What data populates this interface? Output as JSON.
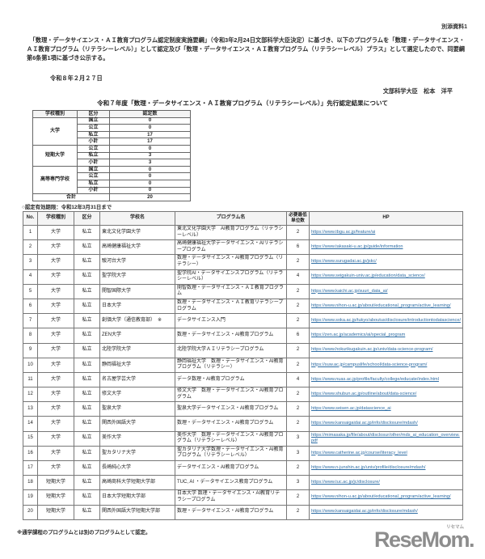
{
  "page": {
    "doc_label": "別添資料1",
    "intro": "　「数理・データサイエンス・ＡＩ教育プログラム認定制度実施要綱」（令和3年2月24日文部科学大臣決定）に基づき、以下のプログラムを「数理・データサイエンス・ＡＩ教育プログラム（リテラシーレベル）」として認定及び「数理・データサイエンス・ＡＩ教育プログラム（リテラシーレベル）プラス」として選定したので、同要綱第6条第1項に基づき公示する。",
    "date": "令和８年２月２７日",
    "signature": "文部科学大臣　松本　洋平",
    "title": "令和７年度「数理・データサイエンス・ＡＩ教育プログラム（リテラシーレベル）」先行認定結果について",
    "validity_note": "○認定有効期限：令和12年3月31日まで",
    "footnote": "※通学課程のプログラムとは別のプログラムとして認定。"
  },
  "summary_table": {
    "headers": [
      "学校種別",
      "区分",
      "認定数"
    ],
    "groups": [
      {
        "type": "大学",
        "rows": [
          [
            "国立",
            "0"
          ],
          [
            "公立",
            "0"
          ],
          [
            "私立",
            "17"
          ],
          [
            "小計",
            "17"
          ]
        ]
      },
      {
        "type": "短期大学",
        "rows": [
          [
            "公立",
            "0"
          ],
          [
            "私立",
            "3"
          ],
          [
            "小計",
            "3"
          ]
        ]
      },
      {
        "type": "高等専門学校",
        "rows": [
          [
            "国立",
            "0"
          ],
          [
            "公立",
            "0"
          ],
          [
            "私立",
            "0"
          ],
          [
            "小計",
            "0"
          ]
        ]
      }
    ],
    "total_label": "合計",
    "total_value": "20"
  },
  "main_table": {
    "headers": [
      "No.",
      "学校種別",
      "区分",
      "学校名",
      "プログラム名",
      "必要最低単位数",
      "HP"
    ],
    "rows": [
      {
        "no": "1",
        "type": "大学",
        "cat": "私立",
        "school": "東北文化学園大学",
        "program": "東北文化学園大学　AI教育プログラム（リテラシーレベル）",
        "units": "2",
        "url": "https://www.tbgu.ac.jp/feature/ai"
      },
      {
        "no": "2",
        "type": "大学",
        "cat": "私立",
        "school": "高崎健康福祉大学",
        "program": "高崎健康福祉大学データサイエンス・AIリテラシープログラム",
        "units": "6",
        "url": "https://www.takasaki-u.ac.jp/guide/information"
      },
      {
        "no": "3",
        "type": "大学",
        "cat": "私立",
        "school": "駿河台大学",
        "program": "数理・データサイエンス・AI教育プログラム（リテラシー）",
        "units": "2",
        "url": "https://www.surugadai.ac.jp/jskc/"
      },
      {
        "no": "4",
        "type": "大学",
        "cat": "私立",
        "school": "聖学院大学",
        "program": "聖学院AI・データサイエンスプログラム（リテラシーレベル）",
        "units": "4",
        "url": "https://www.seigakuin-univ.ac.jp/education/data_science/"
      },
      {
        "no": "5",
        "type": "大学",
        "cat": "私立",
        "school": "開智国際大学",
        "program": "開智数理・データサイエンス・ＡＩ教育プログラム",
        "units": "2",
        "url": "https://www.kaichi.ac.jp/suuri_data_ai/"
      },
      {
        "no": "6",
        "type": "大学",
        "cat": "私立",
        "school": "日本大学",
        "program": "数理・データサイエンス・ＡＩ教育リテラシープログラム",
        "units": "2",
        "url": "https://www.nihon-u.ac.jp/about/educational_program/active_learning/"
      },
      {
        "no": "7",
        "type": "大学",
        "cat": "私立",
        "school": "創価大学（通信教育部）　※",
        "program": "データサイエンス入門",
        "units": "2",
        "url": "https://www.soka.ac.jp/tukyo/aboutus/disclosure/introductiontodatascience/"
      },
      {
        "no": "8",
        "type": "大学",
        "cat": "私立",
        "school": "ZEN大学",
        "program": "数理・データサイエンス・AI教育プログラム",
        "units": "6",
        "url": "https://zen.ac.jp/academics/ai/special_program"
      },
      {
        "no": "9",
        "type": "大学",
        "cat": "私立",
        "school": "北陸学院大学",
        "program": "北陸学院大学ＡＩリテラシープログラム",
        "units": "2",
        "url": "https://www.hokurikugakuin.ac.jp/univ/data-science-program/"
      },
      {
        "no": "10",
        "type": "大学",
        "cat": "私立",
        "school": "静岡福祉大学",
        "program": "静岡福祉大学　数理・データサイエンス・AI教育プログラム（リテラシー）",
        "units": "2",
        "url": "https://suw.ac.jp/campuslife/school/data-science-program/"
      },
      {
        "no": "11",
        "type": "大学",
        "cat": "私立",
        "school": "名古屋学芸大学",
        "program": "データ数理・AI教育プログラム",
        "units": "4",
        "url": "https://www.nuas.ac.jp/profile/faculty/college/educate/index.html"
      },
      {
        "no": "12",
        "type": "大学",
        "cat": "私立",
        "school": "修文大学",
        "program": "修文大学　数理・データサイエンス・AI教育プログラム",
        "units": "2",
        "url": "https://www.shubun.ac.jp/outline/about/data-science/"
      },
      {
        "no": "13",
        "type": "大学",
        "cat": "私立",
        "school": "聖泉大学",
        "program": "聖泉大学データサイエンス・AI教育プログラム",
        "units": "2",
        "url": "https://www.seisen.ac.jp/datascience_ai"
      },
      {
        "no": "14",
        "type": "大学",
        "cat": "私立",
        "school": "関西外国語大学",
        "program": "数理・データサイエンス・AI教育プログラム",
        "units": "2",
        "url": "https://www.kansaigaidai.ac.jp/info/disclosure/mdash/"
      },
      {
        "no": "15",
        "type": "大学",
        "cat": "私立",
        "school": "美作大学",
        "program": "美作大学　数理・データサイエンス・AI教育プログラム（リテラシーレベル）",
        "units": "3",
        "url": "https://mimasaka.jp/file/about/disclosur/other/mds_ai_education_overview.pdf"
      },
      {
        "no": "16",
        "type": "大学",
        "cat": "私立",
        "school": "聖カタリナ大学",
        "program": "聖カタリナ大学数理・データサイエンス・AI教育プログラム（リテラシーレベル）",
        "units": "3",
        "url": "https://www.catherine.ac.jp/course/literacy_level"
      },
      {
        "no": "17",
        "type": "大学",
        "cat": "私立",
        "school": "長崎純心大学",
        "program": "データサイエンス・AI教育プログラム",
        "units": "2",
        "url": "https://www.n-junshin.ac.jp/univ/profile/disclosure/mdash/"
      },
      {
        "no": "18",
        "type": "短期大学",
        "cat": "私立",
        "school": "高崎商科大学短期大学部",
        "program": "TUC, AI ・データサイエンス教育プログラム",
        "units": "3",
        "url": "https://www.tuc.ac.jp/jc/disclosure/"
      },
      {
        "no": "19",
        "type": "短期大学",
        "cat": "私立",
        "school": "日本大学短期大学部",
        "program": "日本大学 数理・データサイエンス・AI教育リテラシープログラム",
        "units": "2",
        "url": "https://www.nihon-u.ac.jp/about/educational_program/active_learning/"
      },
      {
        "no": "20",
        "type": "短期大学",
        "cat": "私立",
        "school": "関西外国語大学短期大学部",
        "program": "数理・データサイエンス・AI教育プログラム",
        "units": "2",
        "url": "https://www.kansaigaidai.ac.jp/info/disclosure/mdash/"
      }
    ]
  },
  "logo": {
    "text": "ReseMom.",
    "ruby": "リセマム"
  }
}
